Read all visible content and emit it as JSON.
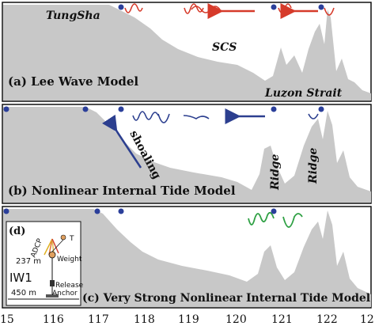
{
  "panels": [
    {
      "label": "(a) Lee Wave Model",
      "annotations": [
        "TungSha",
        "SCS",
        "Luzon Strait"
      ],
      "wave_color": "#d63a2a"
    },
    {
      "label": "(b) Nonlinear Internal Tide Model",
      "annotations": [
        "shoaling",
        "Ridge",
        "Ridge"
      ],
      "wave_color": "#2c3f8f"
    },
    {
      "label": "(c) Very Strong Nonlinear Internal Tide Model",
      "annotations": [],
      "wave_color": "#2ea043"
    }
  ],
  "inset": {
    "label": "(d)",
    "station": "IW1",
    "items": [
      "ADCP",
      "T",
      "237 m",
      "Weight",
      "Release",
      "Anchor",
      "450 m"
    ]
  },
  "x_axis": {
    "ticks": [
      "15",
      "116",
      "117",
      "118",
      "119",
      "120",
      "121",
      "122",
      "12"
    ]
  },
  "colors": {
    "terrain": "#c8c8c8",
    "markers": "#2b3f9a"
  }
}
